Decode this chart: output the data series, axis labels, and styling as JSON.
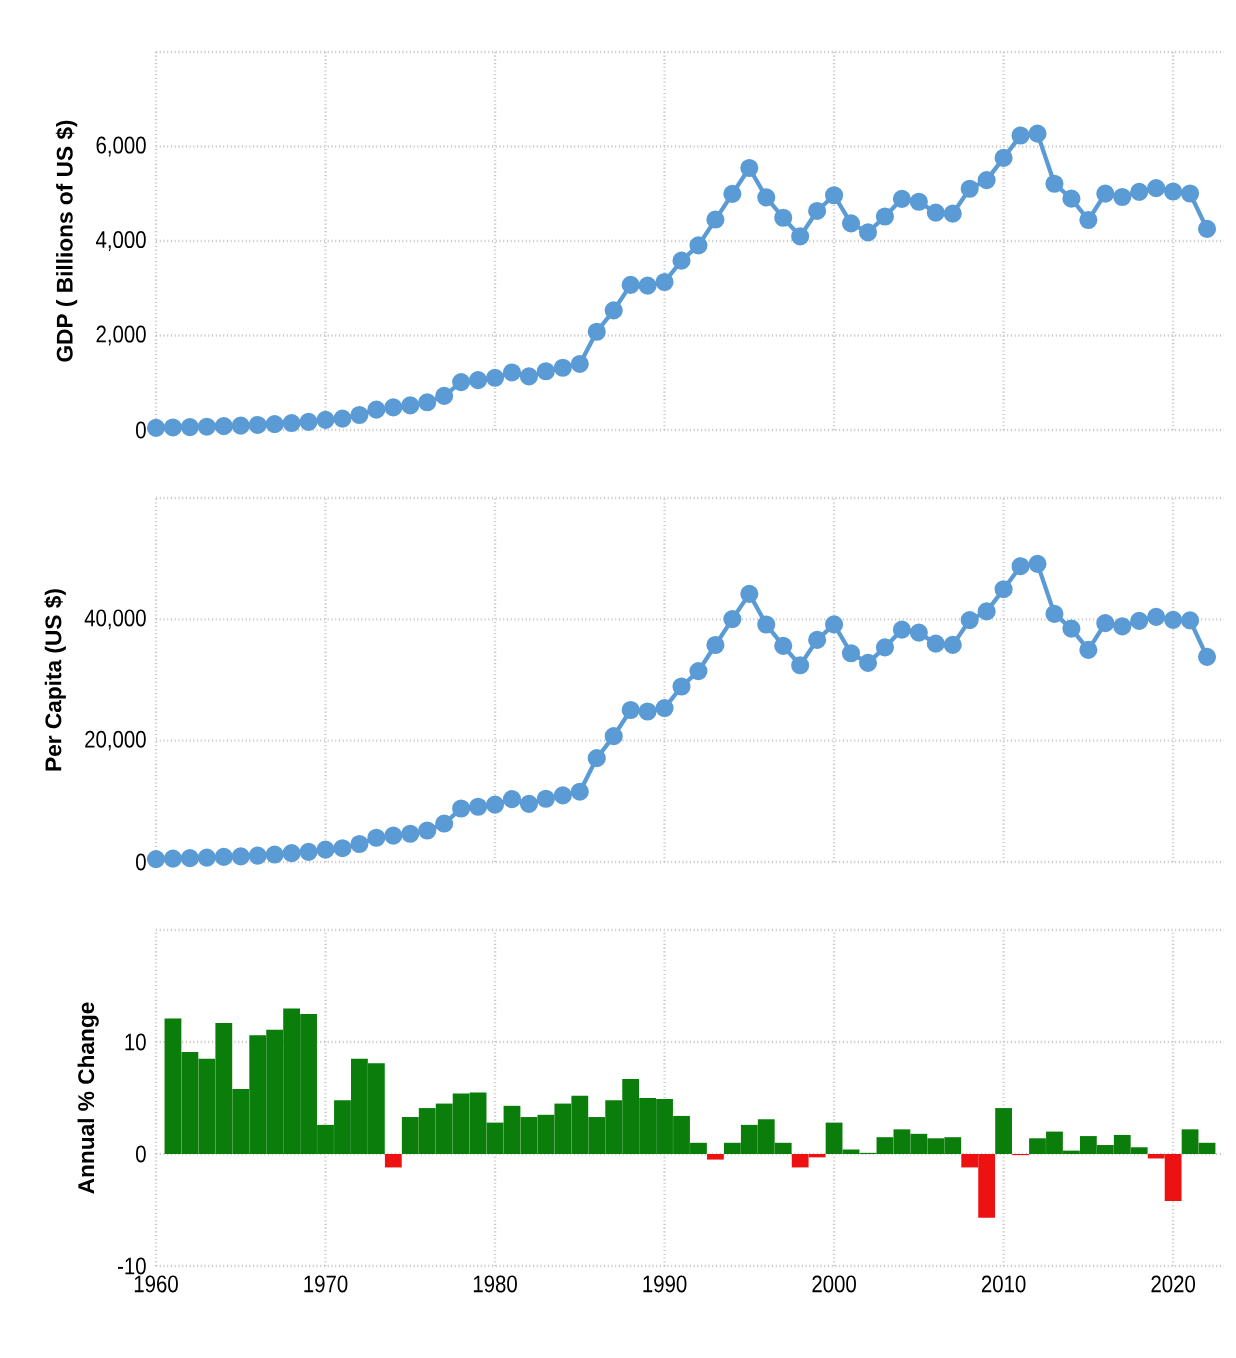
{
  "chart_data": [
    {
      "type": "line",
      "ylabel": "GDP ( Billions of US $)",
      "xlim": [
        1960,
        2023
      ],
      "xticks": [
        1960,
        1970,
        1980,
        1990,
        2000,
        2010,
        2020
      ],
      "ylim": [
        0,
        8000
      ],
      "yticks": [
        0,
        {
          "value": 2000,
          "label": "2,000"
        },
        {
          "value": 4000,
          "label": "4,000"
        },
        {
          "value": 6000,
          "label": "6,000"
        },
        {
          "value": 8000,
          "label": null
        }
      ],
      "tick_labels": "y",
      "grid": true,
      "marker": "circle",
      "x": [
        1960,
        1961,
        1962,
        1963,
        1964,
        1965,
        1966,
        1967,
        1968,
        1969,
        1970,
        1971,
        1972,
        1973,
        1974,
        1975,
        1976,
        1977,
        1978,
        1979,
        1980,
        1981,
        1982,
        1983,
        1984,
        1985,
        1986,
        1987,
        1988,
        1989,
        1990,
        1991,
        1992,
        1993,
        1994,
        1995,
        1996,
        1997,
        1998,
        1999,
        2000,
        2001,
        2002,
        2003,
        2004,
        2005,
        2006,
        2007,
        2008,
        2009,
        2010,
        2011,
        2012,
        2013,
        2014,
        2015,
        2016,
        2017,
        2018,
        2019,
        2020,
        2021,
        2022
      ],
      "series": [
        {
          "color": "#5b9bd5",
          "values": [
            44,
            54,
            61,
            70,
            82,
            92,
            107,
            124,
            147,
            173,
            213,
            241,
            318,
            432,
            480,
            521,
            586,
            721,
            1014,
            1055,
            1105,
            1218,
            1134,
            1243,
            1318,
            1398,
            2079,
            2532,
            3072,
            3055,
            3133,
            3584,
            3909,
            4454,
            4998,
            5545,
            4924,
            4492,
            4098,
            4636,
            4968,
            4374,
            4183,
            4519,
            4893,
            4831,
            4601,
            4579,
            5106,
            5289,
            5759,
            6233,
            6272,
            5212,
            4897,
            4445,
            5004,
            4931,
            5041,
            5118,
            5048,
            5006,
            4256
          ]
        }
      ]
    },
    {
      "type": "line",
      "ylabel": "Per Capita (US $)",
      "xlim": [
        1960,
        2023
      ],
      "xticks": [
        1960,
        1970,
        1980,
        1990,
        2000,
        2010,
        2020
      ],
      "ylim": [
        0,
        60000
      ],
      "yticks": [
        0,
        {
          "value": 20000,
          "label": "20,000"
        },
        {
          "value": 40000,
          "label": "40,000"
        },
        {
          "value": 60000,
          "label": null
        }
      ],
      "tick_labels": "y",
      "grid": true,
      "marker": "circle",
      "x": [
        1960,
        1961,
        1962,
        1963,
        1964,
        1965,
        1966,
        1967,
        1968,
        1969,
        1970,
        1971,
        1972,
        1973,
        1974,
        1975,
        1976,
        1977,
        1978,
        1979,
        1980,
        1981,
        1982,
        1983,
        1984,
        1985,
        1986,
        1987,
        1988,
        1989,
        1990,
        1991,
        1992,
        1993,
        1994,
        1995,
        1996,
        1997,
        1998,
        1999,
        2000,
        2001,
        2002,
        2003,
        2004,
        2005,
        2006,
        2007,
        2008,
        2009,
        2010,
        2011,
        2012,
        2013,
        2014,
        2015,
        2016,
        2017,
        2018,
        2019,
        2020,
        2021,
        2022
      ],
      "series": [
        {
          "color": "#5b9bd5",
          "values": [
            479,
            564,
            634,
            718,
            835,
            920,
            1059,
            1228,
            1451,
            1669,
            2037,
            2272,
            2967,
            3997,
            4354,
            4659,
            5197,
            6335,
            8821,
            9105,
            9463,
            10361,
            9578,
            10425,
            10984,
            11585,
            17112,
            20745,
            25052,
            24813,
            25371,
            28925,
            31465,
            35766,
            40040,
            44198,
            39151,
            35635,
            32424,
            36610,
            39169,
            34406,
            32821,
            35387,
            38299,
            37813,
            35991,
            35779,
            39877,
            41309,
            44968,
            48760,
            49145,
            40898,
            38475,
            34961,
            39375,
            38834,
            39751,
            40416,
            39918,
            39827,
            33815
          ]
        }
      ]
    },
    {
      "type": "bar",
      "ylabel": "Annual % Change",
      "xlim": [
        1960,
        2023
      ],
      "xticks": [
        1960,
        1970,
        1980,
        1990,
        2000,
        2010,
        2020
      ],
      "ylim": [
        -10,
        20
      ],
      "yticks": [
        -10,
        0,
        10,
        {
          "value": 20,
          "label": null
        }
      ],
      "grid": true,
      "x": [
        1961,
        1962,
        1963,
        1964,
        1965,
        1966,
        1967,
        1968,
        1969,
        1970,
        1971,
        1972,
        1973,
        1974,
        1975,
        1976,
        1977,
        1978,
        1979,
        1980,
        1981,
        1982,
        1983,
        1984,
        1985,
        1986,
        1987,
        1988,
        1989,
        1990,
        1991,
        1992,
        1993,
        1994,
        1995,
        1996,
        1997,
        1998,
        1999,
        2000,
        2001,
        2002,
        2003,
        2004,
        2005,
        2006,
        2007,
        2008,
        2009,
        2010,
        2011,
        2012,
        2013,
        2014,
        2015,
        2016,
        2017,
        2018,
        2019,
        2020,
        2021,
        2022
      ],
      "values": [
        12.1,
        9.1,
        8.5,
        11.7,
        5.8,
        10.6,
        11.1,
        13.0,
        12.5,
        2.6,
        4.8,
        8.5,
        8.1,
        -1.2,
        3.3,
        4.1,
        4.5,
        5.4,
        5.5,
        2.8,
        4.3,
        3.3,
        3.5,
        4.5,
        5.2,
        3.3,
        4.8,
        6.7,
        5.0,
        4.9,
        3.4,
        1.0,
        -0.5,
        1.0,
        2.6,
        3.1,
        1.0,
        -1.2,
        -0.3,
        2.8,
        0.4,
        0.1,
        1.5,
        2.2,
        1.8,
        1.4,
        1.5,
        -1.2,
        -5.7,
        4.1,
        -0.1,
        1.4,
        2.0,
        0.3,
        1.6,
        0.8,
        1.7,
        0.6,
        -0.4,
        -4.2,
        2.2,
        1.0
      ],
      "colors": [
        "#0a7d0a",
        "#0a7d0a",
        "#0a7d0a",
        "#0a7d0a",
        "#0a7d0a",
        "#0a7d0a",
        "#0a7d0a",
        "#0a7d0a",
        "#0a7d0a",
        "#0a7d0a",
        "#0a7d0a",
        "#0a7d0a",
        "#0a7d0a",
        "#ee1111",
        "#0a7d0a",
        "#0a7d0a",
        "#0a7d0a",
        "#0a7d0a",
        "#0a7d0a",
        "#0a7d0a",
        "#0a7d0a",
        "#0a7d0a",
        "#0a7d0a",
        "#0a7d0a",
        "#0a7d0a",
        "#0a7d0a",
        "#0a7d0a",
        "#0a7d0a",
        "#0a7d0a",
        "#0a7d0a",
        "#0a7d0a",
        "#0a7d0a",
        "#ee1111",
        "#0a7d0a",
        "#0a7d0a",
        "#0a7d0a",
        "#0a7d0a",
        "#ee1111",
        "#ee1111",
        "#0a7d0a",
        "#0a7d0a",
        "#0a7d0a",
        "#0a7d0a",
        "#0a7d0a",
        "#0a7d0a",
        "#0a7d0a",
        "#0a7d0a",
        "#ee1111",
        "#ee1111",
        "#0a7d0a",
        "#ee1111",
        "#0a7d0a",
        "#0a7d0a",
        "#0a7d0a",
        "#0a7d0a",
        "#0a7d0a",
        "#0a7d0a",
        "#0a7d0a",
        "#ee1111",
        "#ee1111",
        "#0a7d0a",
        "#0a7d0a"
      ]
    }
  ]
}
